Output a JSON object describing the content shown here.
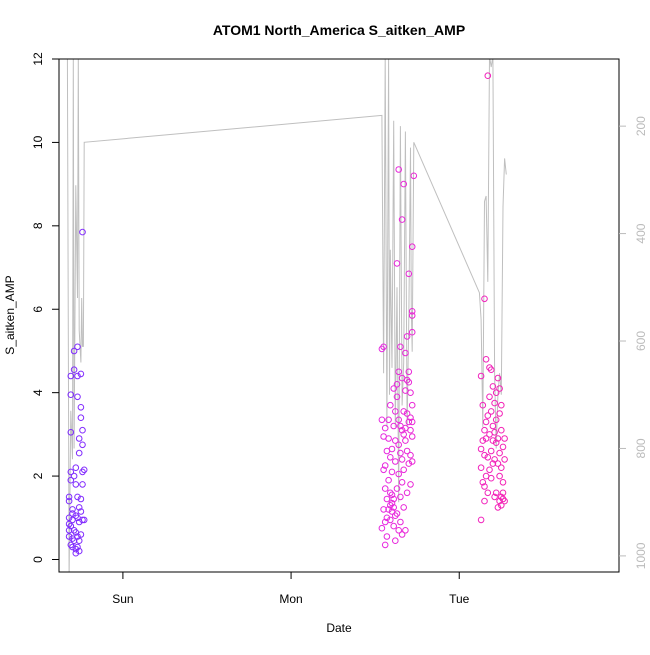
{
  "chart_data": {
    "type": "scatter",
    "title": "ATOM1 North_America S_aitken_AMP",
    "xlabel": "Date",
    "ylabel": "S_aitken_AMP",
    "x_ticks": [
      "Sun",
      "Mon",
      "Tue"
    ],
    "y_ticks": [
      0,
      2,
      4,
      6,
      8,
      10,
      12
    ],
    "y_right_ticks": [
      200,
      400,
      600,
      800,
      1000
    ],
    "xlim_days": [
      -0.38,
      2.95
    ],
    "ylim": [
      -0.3,
      12.0
    ],
    "y_right_lim": [
      1030,
      75
    ],
    "right_axis_inverted": true,
    "grid": false,
    "colors": {
      "point_start": "#7a2cff",
      "point_mid": "#e22cf0",
      "point_end": "#ff1a8c",
      "line": "#bfbfbf",
      "right_axis": "#bbbbbb"
    },
    "series": [
      {
        "type": "scatter",
        "points": [
          [
            -0.32,
            0.55
          ],
          [
            -0.32,
            0.7
          ],
          [
            -0.32,
            0.85
          ],
          [
            -0.32,
            1.0
          ],
          [
            -0.32,
            1.4
          ],
          [
            -0.32,
            1.5
          ],
          [
            -0.31,
            0.35
          ],
          [
            -0.31,
            0.8
          ],
          [
            -0.31,
            1.9
          ],
          [
            -0.31,
            2.1
          ],
          [
            -0.31,
            3.05
          ],
          [
            -0.31,
            3.95
          ],
          [
            -0.31,
            4.4
          ],
          [
            -0.3,
            0.5
          ],
          [
            -0.3,
            0.95
          ],
          [
            -0.3,
            1.1
          ],
          [
            -0.3,
            1.2
          ],
          [
            -0.3,
            0.3
          ],
          [
            -0.29,
            0.45
          ],
          [
            -0.29,
            0.7
          ],
          [
            -0.29,
            2.0
          ],
          [
            -0.29,
            4.55
          ],
          [
            -0.29,
            5.0
          ],
          [
            -0.28,
            0.25
          ],
          [
            -0.28,
            0.65
          ],
          [
            -0.28,
            1.05
          ],
          [
            -0.28,
            1.8
          ],
          [
            -0.28,
            2.2
          ],
          [
            -0.28,
            0.15
          ],
          [
            -0.27,
            0.3
          ],
          [
            -0.27,
            0.55
          ],
          [
            -0.27,
            1.0
          ],
          [
            -0.27,
            1.5
          ],
          [
            -0.27,
            3.9
          ],
          [
            -0.27,
            4.4
          ],
          [
            -0.27,
            5.1
          ],
          [
            -0.26,
            0.2
          ],
          [
            -0.26,
            0.45
          ],
          [
            -0.26,
            0.9
          ],
          [
            -0.26,
            1.25
          ],
          [
            -0.26,
            2.55
          ],
          [
            -0.26,
            2.9
          ],
          [
            -0.25,
            0.6
          ],
          [
            -0.25,
            1.15
          ],
          [
            -0.25,
            1.45
          ],
          [
            -0.25,
            3.4
          ],
          [
            -0.25,
            3.65
          ],
          [
            -0.25,
            4.45
          ],
          [
            -0.24,
            0.95
          ],
          [
            -0.24,
            1.8
          ],
          [
            -0.24,
            2.1
          ],
          [
            -0.24,
            2.75
          ],
          [
            -0.24,
            3.1
          ],
          [
            -0.24,
            7.85
          ],
          [
            -0.23,
            0.95
          ],
          [
            -0.23,
            2.15
          ],
          [
            1.54,
            0.75
          ],
          [
            1.54,
            3.35
          ],
          [
            1.54,
            5.05
          ],
          [
            1.55,
            1.2
          ],
          [
            1.55,
            2.15
          ],
          [
            1.55,
            2.95
          ],
          [
            1.55,
            5.1
          ],
          [
            1.56,
            0.35
          ],
          [
            1.56,
            0.9
          ],
          [
            1.56,
            1.7
          ],
          [
            1.56,
            2.25
          ],
          [
            1.56,
            3.15
          ],
          [
            1.57,
            0.55
          ],
          [
            1.57,
            1.0
          ],
          [
            1.57,
            1.45
          ],
          [
            1.57,
            2.6
          ],
          [
            1.58,
            1.2
          ],
          [
            1.58,
            1.9
          ],
          [
            1.58,
            2.9
          ],
          [
            1.58,
            3.35
          ],
          [
            1.59,
            0.95
          ],
          [
            1.59,
            1.3
          ],
          [
            1.59,
            1.6
          ],
          [
            1.59,
            2.45
          ],
          [
            1.59,
            3.7
          ],
          [
            1.6,
            1.15
          ],
          [
            1.6,
            1.35
          ],
          [
            1.6,
            1.55
          ],
          [
            1.6,
            2.1
          ],
          [
            1.6,
            2.65
          ],
          [
            1.61,
            0.8
          ],
          [
            1.61,
            1.25
          ],
          [
            1.61,
            1.45
          ],
          [
            1.61,
            4.1
          ],
          [
            1.61,
            3.2
          ],
          [
            1.62,
            0.45
          ],
          [
            1.62,
            1.05
          ],
          [
            1.62,
            2.35
          ],
          [
            1.62,
            2.85
          ],
          [
            1.62,
            3.55
          ],
          [
            1.63,
            1.1
          ],
          [
            1.63,
            1.7
          ],
          [
            1.63,
            3.9
          ],
          [
            1.63,
            4.2
          ],
          [
            1.63,
            7.1
          ],
          [
            1.64,
            0.7
          ],
          [
            1.64,
            2.05
          ],
          [
            1.64,
            2.75
          ],
          [
            1.64,
            3.35
          ],
          [
            1.64,
            4.5
          ],
          [
            1.64,
            9.35
          ],
          [
            1.65,
            0.9
          ],
          [
            1.65,
            1.5
          ],
          [
            1.65,
            2.55
          ],
          [
            1.65,
            3.2
          ],
          [
            1.65,
            5.1
          ],
          [
            1.66,
            0.6
          ],
          [
            1.66,
            1.85
          ],
          [
            1.66,
            2.4
          ],
          [
            1.66,
            3.1
          ],
          [
            1.66,
            4.35
          ],
          [
            1.66,
            8.15
          ],
          [
            1.67,
            1.25
          ],
          [
            1.67,
            2.15
          ],
          [
            1.67,
            3.0
          ],
          [
            1.67,
            3.55
          ],
          [
            1.67,
            9.0
          ],
          [
            1.68,
            0.7
          ],
          [
            1.68,
            2.85
          ],
          [
            1.68,
            3.15
          ],
          [
            1.68,
            4.05
          ],
          [
            1.68,
            4.95
          ],
          [
            1.69,
            1.6
          ],
          [
            1.69,
            2.6
          ],
          [
            1.69,
            3.5
          ],
          [
            1.69,
            4.3
          ],
          [
            1.69,
            5.35
          ],
          [
            1.7,
            2.3
          ],
          [
            1.7,
            3.3
          ],
          [
            1.7,
            4.25
          ],
          [
            1.7,
            4.5
          ],
          [
            1.7,
            6.85
          ],
          [
            1.71,
            1.8
          ],
          [
            1.71,
            2.5
          ],
          [
            1.71,
            3.1
          ],
          [
            1.71,
            3.4
          ],
          [
            1.71,
            4.0
          ],
          [
            1.72,
            2.35
          ],
          [
            1.72,
            2.95
          ],
          [
            1.72,
            3.3
          ],
          [
            1.72,
            3.7
          ],
          [
            1.72,
            5.45
          ],
          [
            1.72,
            5.85
          ],
          [
            1.72,
            5.95
          ],
          [
            1.72,
            7.5
          ],
          [
            1.73,
            9.2
          ],
          [
            2.13,
            0.95
          ],
          [
            2.13,
            2.2
          ],
          [
            2.13,
            2.65
          ],
          [
            2.13,
            4.4
          ],
          [
            2.14,
            1.85
          ],
          [
            2.14,
            2.85
          ],
          [
            2.14,
            3.7
          ],
          [
            2.15,
            1.4
          ],
          [
            2.15,
            1.75
          ],
          [
            2.15,
            2.5
          ],
          [
            2.15,
            3.1
          ],
          [
            2.15,
            6.25
          ],
          [
            2.16,
            2.0
          ],
          [
            2.16,
            2.9
          ],
          [
            2.16,
            3.3
          ],
          [
            2.16,
            4.8
          ],
          [
            2.17,
            1.6
          ],
          [
            2.17,
            2.45
          ],
          [
            2.17,
            3.45
          ],
          [
            2.17,
            11.6
          ],
          [
            2.18,
            2.15
          ],
          [
            2.18,
            3.0
          ],
          [
            2.18,
            3.9
          ],
          [
            2.18,
            4.6
          ],
          [
            2.19,
            1.95
          ],
          [
            2.19,
            2.6
          ],
          [
            2.19,
            3.55
          ],
          [
            2.19,
            4.55
          ],
          [
            2.2,
            2.3
          ],
          [
            2.2,
            2.85
          ],
          [
            2.2,
            3.2
          ],
          [
            2.2,
            4.15
          ],
          [
            2.21,
            1.5
          ],
          [
            2.21,
            2.4
          ],
          [
            2.21,
            3.05
          ],
          [
            2.21,
            3.75
          ],
          [
            2.22,
            1.6
          ],
          [
            2.22,
            2.8
          ],
          [
            2.22,
            3.35
          ],
          [
            2.22,
            4.0
          ],
          [
            2.23,
            1.25
          ],
          [
            2.23,
            2.3
          ],
          [
            2.23,
            2.9
          ],
          [
            2.23,
            4.35
          ],
          [
            2.24,
            1.4
          ],
          [
            2.24,
            2.0
          ],
          [
            2.24,
            2.55
          ],
          [
            2.24,
            3.5
          ],
          [
            2.24,
            4.1
          ],
          [
            2.25,
            1.3
          ],
          [
            2.25,
            1.5
          ],
          [
            2.25,
            2.2
          ],
          [
            2.25,
            3.1
          ],
          [
            2.25,
            3.7
          ],
          [
            2.26,
            1.45
          ],
          [
            2.26,
            1.85
          ],
          [
            2.26,
            2.7
          ],
          [
            2.26,
            1.6
          ],
          [
            2.27,
            1.4
          ],
          [
            2.27,
            2.4
          ],
          [
            2.27,
            2.9
          ]
        ]
      },
      {
        "type": "line",
        "axis": "right",
        "points": [
          [
            -0.33,
            70
          ],
          [
            -0.32,
            1040
          ],
          [
            -0.31,
            730
          ],
          [
            -0.3,
            820
          ],
          [
            -0.295,
            70
          ],
          [
            -0.29,
            800
          ],
          [
            -0.28,
            310
          ],
          [
            -0.27,
            520
          ],
          [
            -0.265,
            70
          ],
          [
            -0.26,
            580
          ],
          [
            -0.25,
            640
          ],
          [
            -0.245,
            520
          ],
          [
            -0.24,
            610
          ],
          [
            -0.235,
            610
          ],
          [
            -0.23,
            230
          ],
          [
            1.54,
            180
          ],
          [
            1.55,
            660
          ],
          [
            1.56,
            70
          ],
          [
            1.57,
            760
          ],
          [
            1.58,
            70
          ],
          [
            1.585,
            700
          ],
          [
            1.59,
            430
          ],
          [
            1.6,
            650
          ],
          [
            1.61,
            190
          ],
          [
            1.62,
            760
          ],
          [
            1.63,
            500
          ],
          [
            1.64,
            900
          ],
          [
            1.65,
            200
          ],
          [
            1.66,
            720
          ],
          [
            1.67,
            640
          ],
          [
            1.68,
            210
          ],
          [
            1.69,
            760
          ],
          [
            1.7,
            560
          ],
          [
            1.71,
            240
          ],
          [
            1.715,
            540
          ],
          [
            1.72,
            620
          ],
          [
            1.73,
            230
          ],
          [
            2.12,
            510
          ],
          [
            2.13,
            560
          ],
          [
            2.14,
            760
          ],
          [
            2.15,
            340
          ],
          [
            2.16,
            330
          ],
          [
            2.17,
            490
          ],
          [
            2.18,
            70
          ],
          [
            2.19,
            90
          ],
          [
            2.2,
            70
          ],
          [
            2.21,
            660
          ],
          [
            2.22,
            800
          ],
          [
            2.23,
            700
          ],
          [
            2.24,
            660
          ],
          [
            2.25,
            700
          ],
          [
            2.26,
            350
          ],
          [
            2.27,
            260
          ],
          [
            2.28,
            290
          ]
        ]
      }
    ]
  }
}
